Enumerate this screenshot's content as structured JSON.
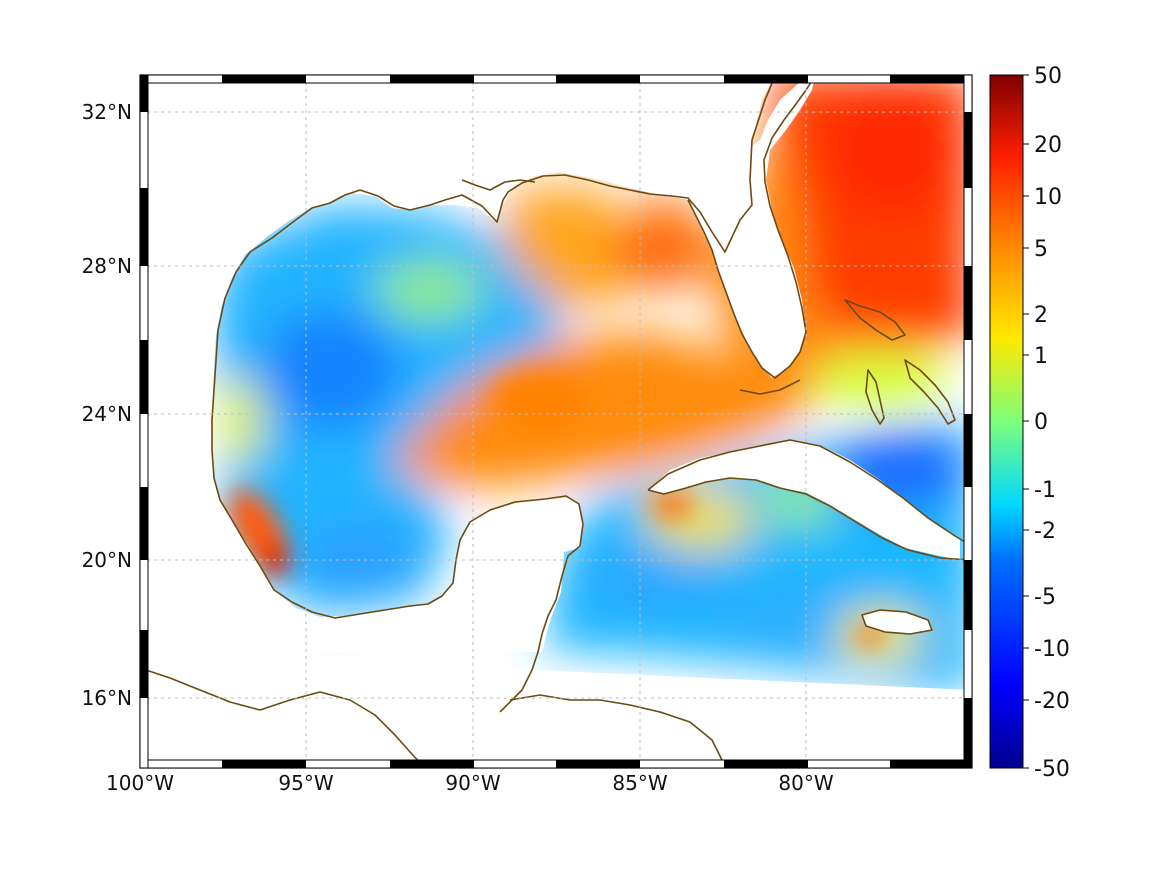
{
  "map": {
    "x_tick_labels": [
      "100°W",
      "95°W",
      "90°W",
      "85°W",
      "80°W"
    ],
    "y_tick_labels": [
      "32°N",
      "28°N",
      "24°N",
      "20°N",
      "16°N"
    ],
    "coastline_color": "#6b4a12",
    "colormap": "jet",
    "grid": true
  },
  "colorbar": {
    "tick_labels": [
      "50",
      "20",
      "10",
      "5",
      "2",
      "1",
      "0",
      "-1",
      "-2",
      "-5",
      "-10",
      "-20",
      "-50"
    ]
  }
}
